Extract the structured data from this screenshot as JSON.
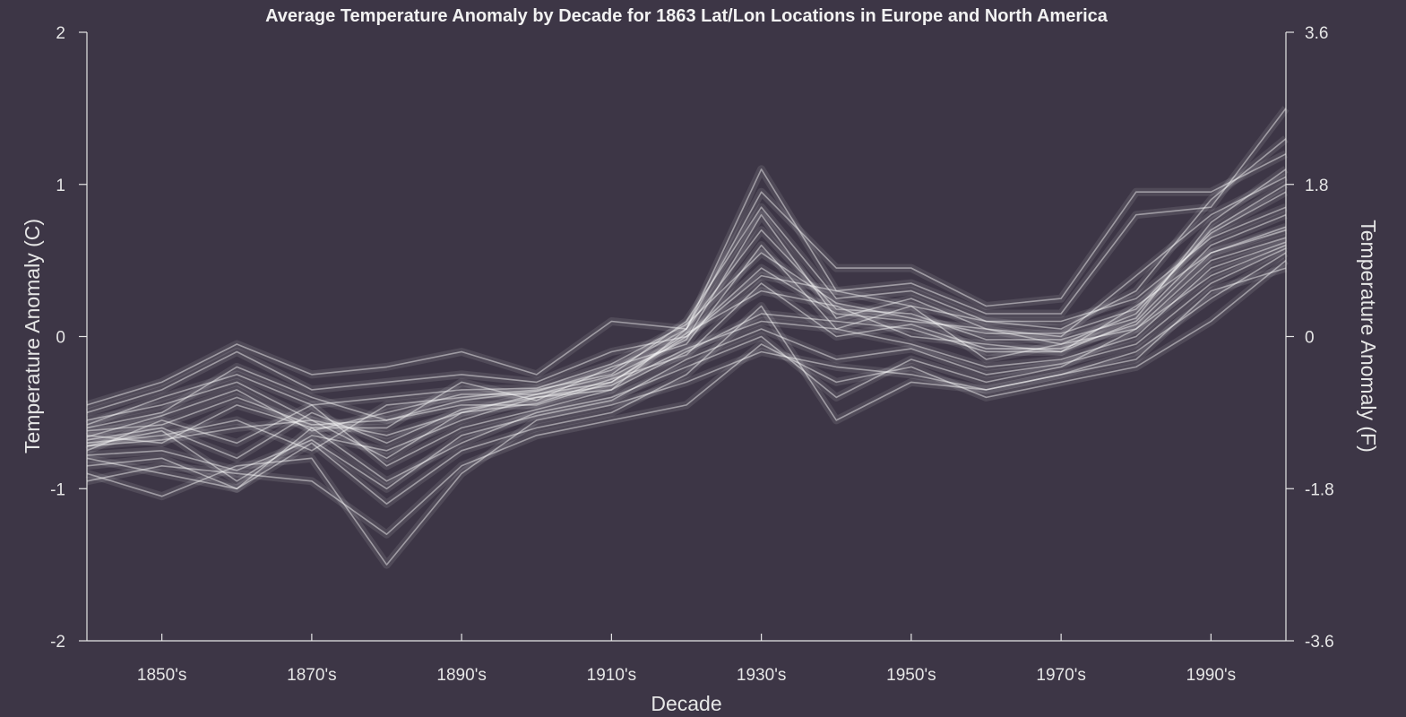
{
  "chart_data": {
    "type": "line",
    "title": "Average Temperature Anomaly by Decade for 1863 Lat/Lon Locations in Europe and North America",
    "xlabel": "Decade",
    "ylabel_left": "Temperature Anomaly (C)",
    "ylabel_right": "Temperature Anomaly (F)",
    "x_domain": [
      1840,
      2000
    ],
    "x": [
      1840,
      1850,
      1860,
      1870,
      1880,
      1890,
      1900,
      1910,
      1920,
      1930,
      1940,
      1950,
      1960,
      1970,
      1980,
      1990,
      2000
    ],
    "x_ticks": [
      {
        "value": 1850,
        "label": "1850's"
      },
      {
        "value": 1870,
        "label": "1870's"
      },
      {
        "value": 1890,
        "label": "1890's"
      },
      {
        "value": 1910,
        "label": "1910's"
      },
      {
        "value": 1930,
        "label": "1930's"
      },
      {
        "value": 1950,
        "label": "1950's"
      },
      {
        "value": 1970,
        "label": "1970's"
      },
      {
        "value": 1990,
        "label": "1990's"
      }
    ],
    "ylim_left": [
      -2,
      2
    ],
    "y_ticks_left": [
      {
        "value": 2,
        "label": "2"
      },
      {
        "value": 1,
        "label": "1"
      },
      {
        "value": 0,
        "label": "0"
      },
      {
        "value": -1,
        "label": "-1"
      },
      {
        "value": -2,
        "label": "-2"
      }
    ],
    "ylim_right": [
      -3.6,
      3.6
    ],
    "y_ticks_right": [
      {
        "value": 3.6,
        "label": "3.6"
      },
      {
        "value": 1.8,
        "label": "1.8"
      },
      {
        "value": 0,
        "label": "0"
      },
      {
        "value": -1.8,
        "label": "-1.8"
      },
      {
        "value": -3.6,
        "label": "-3.6"
      }
    ],
    "grid": false,
    "series_color": "#ffffff",
    "background": "#3d3646",
    "series": [
      {
        "values": [
          -0.72,
          -0.62,
          -0.95,
          -0.65,
          -0.75,
          -0.55,
          -0.4,
          -0.35,
          -0.1,
          0.15,
          0.1,
          0.05,
          -0.1,
          -0.1,
          0.1,
          0.6,
          0.8
        ]
      },
      {
        "values": [
          -0.6,
          -0.5,
          -0.2,
          -0.4,
          -0.55,
          -0.45,
          -0.45,
          -0.3,
          0.0,
          0.45,
          0.15,
          0.1,
          0.05,
          -0.05,
          0.15,
          0.7,
          1.0
        ]
      },
      {
        "values": [
          -0.85,
          -0.8,
          -1.0,
          -0.6,
          -0.95,
          -0.7,
          -0.5,
          -0.4,
          -0.2,
          0.0,
          -0.4,
          -0.15,
          -0.3,
          -0.2,
          0.05,
          0.4,
          0.6
        ]
      },
      {
        "values": [
          -0.7,
          -0.65,
          -0.55,
          -0.75,
          -0.45,
          -0.4,
          -0.35,
          -0.25,
          0.1,
          0.85,
          0.25,
          0.3,
          0.1,
          0.05,
          0.3,
          0.9,
          1.3
        ]
      },
      {
        "values": [
          -0.55,
          -0.45,
          -0.3,
          -0.55,
          -0.65,
          -0.5,
          -0.38,
          -0.3,
          0.02,
          0.3,
          0.2,
          0.0,
          -0.05,
          -0.1,
          0.2,
          0.55,
          0.7
        ]
      },
      {
        "values": [
          -0.9,
          -1.05,
          -0.85,
          -0.8,
          -1.5,
          -0.9,
          -0.55,
          -0.45,
          -0.3,
          -0.1,
          -0.2,
          -0.25,
          -0.35,
          -0.25,
          -0.1,
          0.25,
          0.55
        ]
      },
      {
        "values": [
          -0.65,
          -0.7,
          -0.45,
          -0.6,
          -0.6,
          -0.3,
          -0.42,
          -0.2,
          -0.05,
          0.6,
          0.05,
          0.2,
          -0.15,
          -0.05,
          0.05,
          0.5,
          0.65
        ]
      },
      {
        "values": [
          -0.75,
          -0.55,
          -0.7,
          -0.45,
          -0.85,
          -0.6,
          -0.48,
          -0.35,
          0.05,
          1.1,
          0.3,
          0.35,
          0.15,
          0.15,
          0.8,
          0.85,
          1.5
        ]
      },
      {
        "values": [
          -0.8,
          -0.9,
          -1.0,
          -0.7,
          -1.1,
          -0.75,
          -0.6,
          -0.5,
          -0.25,
          0.2,
          -0.55,
          -0.3,
          -0.35,
          -0.25,
          -0.15,
          0.3,
          0.45
        ]
      },
      {
        "values": [
          -0.5,
          -0.35,
          -0.1,
          -0.35,
          -0.3,
          -0.25,
          -0.3,
          -0.1,
          0.0,
          0.4,
          0.3,
          0.2,
          0.1,
          0.1,
          0.25,
          0.65,
          0.85
        ]
      },
      {
        "values": [
          -0.68,
          -0.6,
          -0.8,
          -0.5,
          -0.7,
          -0.48,
          -0.4,
          -0.32,
          -0.08,
          0.1,
          0.05,
          -0.05,
          -0.2,
          -0.15,
          0.0,
          0.45,
          0.62
        ]
      },
      {
        "values": [
          -0.62,
          -0.58,
          -0.4,
          -0.58,
          -0.55,
          -0.42,
          -0.36,
          -0.22,
          0.05,
          0.7,
          0.18,
          0.15,
          -0.02,
          -0.02,
          0.12,
          0.75,
          1.1
        ]
      },
      {
        "values": [
          -0.95,
          -0.85,
          -0.9,
          -0.95,
          -1.3,
          -0.85,
          -0.65,
          -0.55,
          -0.45,
          -0.05,
          -0.3,
          -0.2,
          -0.4,
          -0.3,
          -0.2,
          0.1,
          0.5
        ]
      },
      {
        "values": [
          -0.45,
          -0.3,
          -0.05,
          -0.25,
          -0.2,
          -0.1,
          -0.25,
          0.1,
          0.05,
          0.95,
          0.45,
          0.45,
          0.2,
          0.25,
          0.95,
          0.95,
          1.2
        ]
      },
      {
        "values": [
          -0.72,
          -0.68,
          -0.6,
          -0.55,
          -0.8,
          -0.5,
          -0.44,
          -0.28,
          -0.12,
          0.35,
          0.0,
          0.08,
          -0.08,
          -0.08,
          0.08,
          0.55,
          0.72
        ]
      },
      {
        "values": [
          -0.58,
          -0.4,
          -0.25,
          -0.45,
          -0.4,
          -0.35,
          -0.34,
          -0.18,
          0.08,
          0.55,
          0.22,
          0.12,
          0.02,
          0.02,
          0.18,
          0.68,
          0.95
        ]
      },
      {
        "values": [
          -0.78,
          -0.75,
          -0.88,
          -0.68,
          -1.0,
          -0.65,
          -0.52,
          -0.42,
          -0.15,
          0.05,
          -0.15,
          -0.08,
          -0.25,
          -0.18,
          -0.05,
          0.35,
          0.58
        ]
      },
      {
        "values": [
          -0.66,
          -0.52,
          -0.35,
          -0.62,
          -0.5,
          -0.38,
          -0.38,
          -0.26,
          -0.02,
          0.8,
          0.12,
          0.25,
          0.05,
          0.0,
          0.4,
          0.8,
          1.05
        ]
      }
    ]
  }
}
